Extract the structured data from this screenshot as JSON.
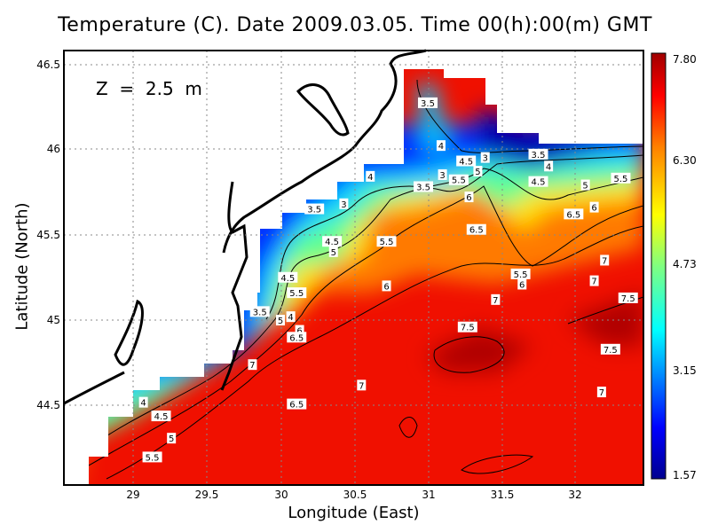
{
  "title": "Temperature (C). Date 2009.03.05. Time 00(h):00(m) GMT",
  "depth_label": "Z  =  2.5  m",
  "xlabel": "Longitude (East)",
  "ylabel": "Latitude (North)",
  "chart_data": {
    "type": "heatmap",
    "title": "Temperature (C). Date 2009.03.05. Time 00(h):00(m) GMT",
    "xlabel": "Longitude (East)",
    "ylabel": "Latitude (North)",
    "xlim": [
      28.53,
      32.46
    ],
    "ylim": [
      44.08,
      46.58
    ],
    "x_ticks": [
      "29",
      "29.5",
      "30",
      "30.5",
      "31",
      "31.5",
      "32"
    ],
    "y_ticks": [
      "44.5",
      "45",
      "45.5",
      "46",
      "46.5"
    ],
    "grid": true,
    "colorbar": {
      "range": [
        1.57,
        7.8
      ],
      "tick_labels": [
        "7.80",
        "6.30",
        "4.73",
        "3.15",
        "1.57"
      ],
      "colors": [
        "#00008f",
        "#0000ff",
        "#0080ff",
        "#00ffff",
        "#80ff80",
        "#ffff00",
        "#ff8000",
        "#ff0000",
        "#800000"
      ]
    },
    "land_color": "#ffffff",
    "contour_labels": [
      {
        "text": "3.5",
        "lon": 31.0,
        "lat": 46.27
      },
      {
        "text": "4",
        "lon": 31.09,
        "lat": 46.02
      },
      {
        "text": "3",
        "lon": 31.39,
        "lat": 45.95
      },
      {
        "text": "4.5",
        "lon": 31.26,
        "lat": 45.93
      },
      {
        "text": "5",
        "lon": 31.34,
        "lat": 45.87
      },
      {
        "text": "3",
        "lon": 31.1,
        "lat": 45.85
      },
      {
        "text": "5.5",
        "lon": 31.21,
        "lat": 45.82
      },
      {
        "text": "3.5",
        "lon": 30.97,
        "lat": 45.78
      },
      {
        "text": "4",
        "lon": 30.61,
        "lat": 45.84
      },
      {
        "text": "3",
        "lon": 30.43,
        "lat": 45.68
      },
      {
        "text": "3.5",
        "lon": 30.23,
        "lat": 45.65
      },
      {
        "text": "6",
        "lon": 31.28,
        "lat": 45.72
      },
      {
        "text": "4.5",
        "lon": 30.35,
        "lat": 45.46
      },
      {
        "text": "5",
        "lon": 30.36,
        "lat": 45.4
      },
      {
        "text": "5.5",
        "lon": 30.72,
        "lat": 45.46
      },
      {
        "text": "6.5",
        "lon": 31.33,
        "lat": 45.53
      },
      {
        "text": "6.5",
        "lon": 31.99,
        "lat": 45.62
      },
      {
        "text": "6",
        "lon": 32.13,
        "lat": 45.66
      },
      {
        "text": "5",
        "lon": 32.07,
        "lat": 45.79
      },
      {
        "text": "5.5",
        "lon": 32.31,
        "lat": 45.83
      },
      {
        "text": "4.5",
        "lon": 31.75,
        "lat": 45.81
      },
      {
        "text": "4",
        "lon": 31.82,
        "lat": 45.9
      },
      {
        "text": "3.5",
        "lon": 31.75,
        "lat": 45.97
      },
      {
        "text": "4.5",
        "lon": 30.05,
        "lat": 45.25
      },
      {
        "text": "5.5",
        "lon": 30.11,
        "lat": 45.16
      },
      {
        "text": "6",
        "lon": 30.72,
        "lat": 45.2
      },
      {
        "text": "5.5",
        "lon": 31.63,
        "lat": 45.27
      },
      {
        "text": "6",
        "lon": 31.64,
        "lat": 45.21
      },
      {
        "text": "7",
        "lon": 32.2,
        "lat": 45.35
      },
      {
        "text": "7",
        "lon": 32.13,
        "lat": 45.23
      },
      {
        "text": "7",
        "lon": 31.46,
        "lat": 45.12
      },
      {
        "text": "7.5",
        "lon": 32.36,
        "lat": 45.13
      },
      {
        "text": "3.5",
        "lon": 29.86,
        "lat": 45.05
      },
      {
        "text": "5",
        "lon": 30.0,
        "lat": 45.0
      },
      {
        "text": "4",
        "lon": 30.07,
        "lat": 45.02
      },
      {
        "text": "6",
        "lon": 30.13,
        "lat": 44.94
      },
      {
        "text": "6.5",
        "lon": 30.11,
        "lat": 44.9
      },
      {
        "text": "7.5",
        "lon": 31.27,
        "lat": 44.96
      },
      {
        "text": "7.5",
        "lon": 32.24,
        "lat": 44.83
      },
      {
        "text": "7",
        "lon": 29.81,
        "lat": 44.74
      },
      {
        "text": "7",
        "lon": 30.55,
        "lat": 44.62
      },
      {
        "text": "6.5",
        "lon": 30.11,
        "lat": 44.51
      },
      {
        "text": "7",
        "lon": 32.18,
        "lat": 44.58
      },
      {
        "text": "4",
        "lon": 29.07,
        "lat": 44.52
      },
      {
        "text": "4.5",
        "lon": 29.19,
        "lat": 44.44
      },
      {
        "text": "5",
        "lon": 29.26,
        "lat": 44.31
      },
      {
        "text": "5.5",
        "lon": 29.13,
        "lat": 44.2
      }
    ]
  }
}
